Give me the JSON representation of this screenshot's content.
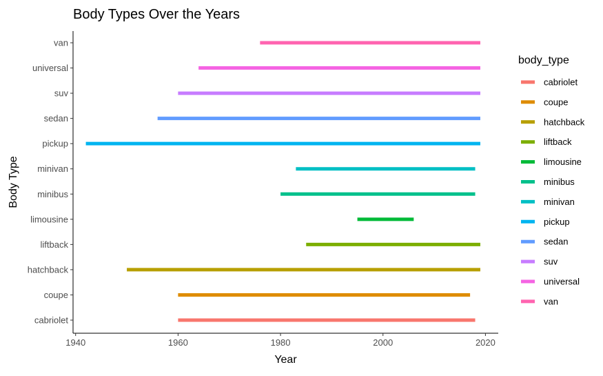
{
  "chart_data": {
    "type": "bar",
    "orientation": "horizontal-range",
    "title": "Body Types Over the Years",
    "xlabel": "Year",
    "ylabel": "Body Type",
    "xlim": [
      1939.5,
      2022.5
    ],
    "x_ticks": [
      1940,
      1960,
      1980,
      2000,
      2020
    ],
    "grid": false,
    "legend": {
      "title": "body_type",
      "position": "right"
    },
    "categories": [
      "cabriolet",
      "coupe",
      "hatchback",
      "liftback",
      "limousine",
      "minibus",
      "minivan",
      "pickup",
      "sedan",
      "suv",
      "universal",
      "van"
    ],
    "series": [
      {
        "name": "cabriolet",
        "start": 1960,
        "end": 2018,
        "color": "#F8766D"
      },
      {
        "name": "coupe",
        "start": 1960,
        "end": 2017,
        "color": "#DE8C00"
      },
      {
        "name": "hatchback",
        "start": 1950,
        "end": 2019,
        "color": "#B79F00"
      },
      {
        "name": "liftback",
        "start": 1985,
        "end": 2019,
        "color": "#7CAE00"
      },
      {
        "name": "limousine",
        "start": 1995,
        "end": 2006,
        "color": "#00BA38"
      },
      {
        "name": "minibus",
        "start": 1980,
        "end": 2018,
        "color": "#00C08B"
      },
      {
        "name": "minivan",
        "start": 1983,
        "end": 2018,
        "color": "#00BFC4"
      },
      {
        "name": "pickup",
        "start": 1942,
        "end": 2019,
        "color": "#00B4F0"
      },
      {
        "name": "sedan",
        "start": 1956,
        "end": 2019,
        "color": "#619CFF"
      },
      {
        "name": "suv",
        "start": 1960,
        "end": 2019,
        "color": "#C77CFF"
      },
      {
        "name": "universal",
        "start": 1964,
        "end": 2019,
        "color": "#F564E3"
      },
      {
        "name": "van",
        "start": 1976,
        "end": 2019,
        "color": "#FF64B0"
      }
    ]
  }
}
